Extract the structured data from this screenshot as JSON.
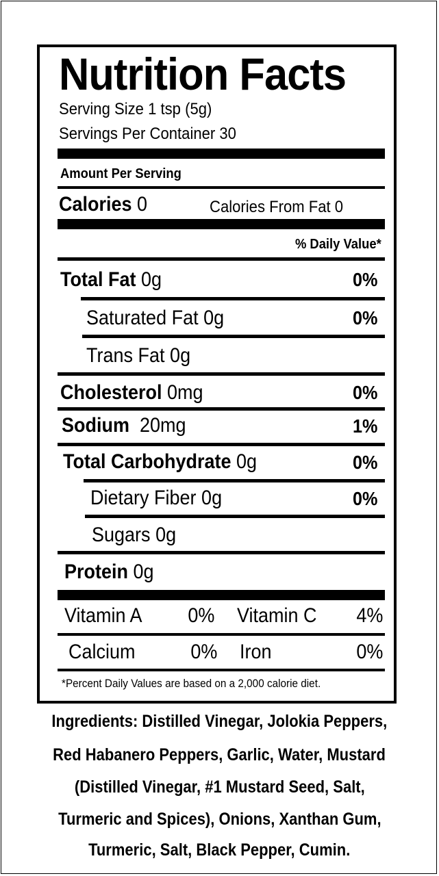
{
  "facts": {
    "title": "Nutrition Facts",
    "serving_size": "Serving Size 1 tsp (5g)",
    "servings_per_container": "Servings Per Container 30",
    "amount_per_serving": "Amount Per Serving",
    "calories_label": "Calories",
    "calories_value": "0",
    "calories_from_fat": "Calories From Fat 0",
    "daily_value_header": "% Daily Value*",
    "total_fat": {
      "label": "Total Fat",
      "value": "0g",
      "dv": "0%"
    },
    "saturated_fat": {
      "label": "Saturated Fat",
      "value": "0g",
      "dv": "0%"
    },
    "trans_fat": {
      "label": "Trans Fat",
      "value": "0g"
    },
    "cholesterol": {
      "label": "Cholesterol",
      "value": "0mg",
      "dv": "0%"
    },
    "sodium": {
      "label": "Sodium",
      "value": "20mg",
      "dv": "1%"
    },
    "total_carbohydrate": {
      "label": "Total Carbohydrate",
      "value": "0g",
      "dv": "0%"
    },
    "dietary_fiber": {
      "label": "Dietary Fiber",
      "value": "0g",
      "dv": "0%"
    },
    "sugars": {
      "label": "Sugars",
      "value": "0g"
    },
    "protein": {
      "label": "Protein",
      "value": "0g"
    },
    "vitamin_a": {
      "label": "Vitamin A",
      "dv": "0%"
    },
    "vitamin_c": {
      "label": "Vitamin C",
      "dv": "4%"
    },
    "calcium": {
      "label": "Calcium",
      "dv": "0%"
    },
    "iron": {
      "label": "Iron",
      "dv": "0%"
    },
    "footnote": "*Percent Daily Values are based on a 2,000 calorie diet."
  },
  "ingredients": {
    "line1": "Ingredients: Distilled Vinegar, Jolokia Peppers,",
    "line2": "Red Habanero Peppers, Garlic, Water, Mustard",
    "line3": "(Distilled Vinegar, #1 Mustard Seed, Salt,",
    "line4": "Turmeric and Spices), Onions, Xanthan Gum,",
    "line5": "Turmeric, Salt, Black Pepper, Cumin."
  }
}
